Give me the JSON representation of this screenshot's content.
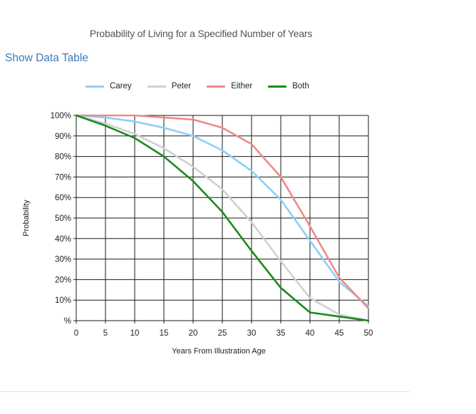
{
  "page": {
    "show_data_table": "Show Data Table"
  },
  "chart_data": {
    "type": "line",
    "title": "Probability of Living for a Specified Number of Years",
    "xlabel": "Years From Illustration Age",
    "ylabel": "Probability",
    "x": [
      0,
      5,
      10,
      15,
      20,
      25,
      30,
      35,
      40,
      45,
      50
    ],
    "xlim": [
      0,
      50
    ],
    "ylim": [
      0,
      100
    ],
    "x_ticks": [
      "0",
      "5",
      "10",
      "15",
      "20",
      "25",
      "30",
      "35",
      "40",
      "45",
      "50"
    ],
    "y_ticks": [
      "%",
      "10%",
      "20%",
      "30%",
      "40%",
      "50%",
      "60%",
      "70%",
      "80%",
      "90%",
      "100%"
    ],
    "grid": true,
    "legend_position": "top",
    "series": [
      {
        "name": "Carey",
        "color": "#8ecff5",
        "values": [
          100,
          99,
          97,
          94,
          90,
          83,
          73,
          59,
          39,
          19,
          7
        ]
      },
      {
        "name": "Peter",
        "color": "#d0d0d0",
        "values": [
          100,
          96,
          91,
          84,
          75,
          64,
          48,
          29,
          11,
          3,
          0
        ]
      },
      {
        "name": "Either",
        "color": "#ee8a8a",
        "values": [
          100,
          100,
          100,
          99,
          98,
          94,
          86,
          70,
          46,
          21,
          6
        ]
      },
      {
        "name": "Both",
        "color": "#1b8a1b",
        "values": [
          100,
          95,
          89,
          80,
          68,
          53,
          34,
          16,
          4,
          2,
          0
        ]
      }
    ]
  }
}
